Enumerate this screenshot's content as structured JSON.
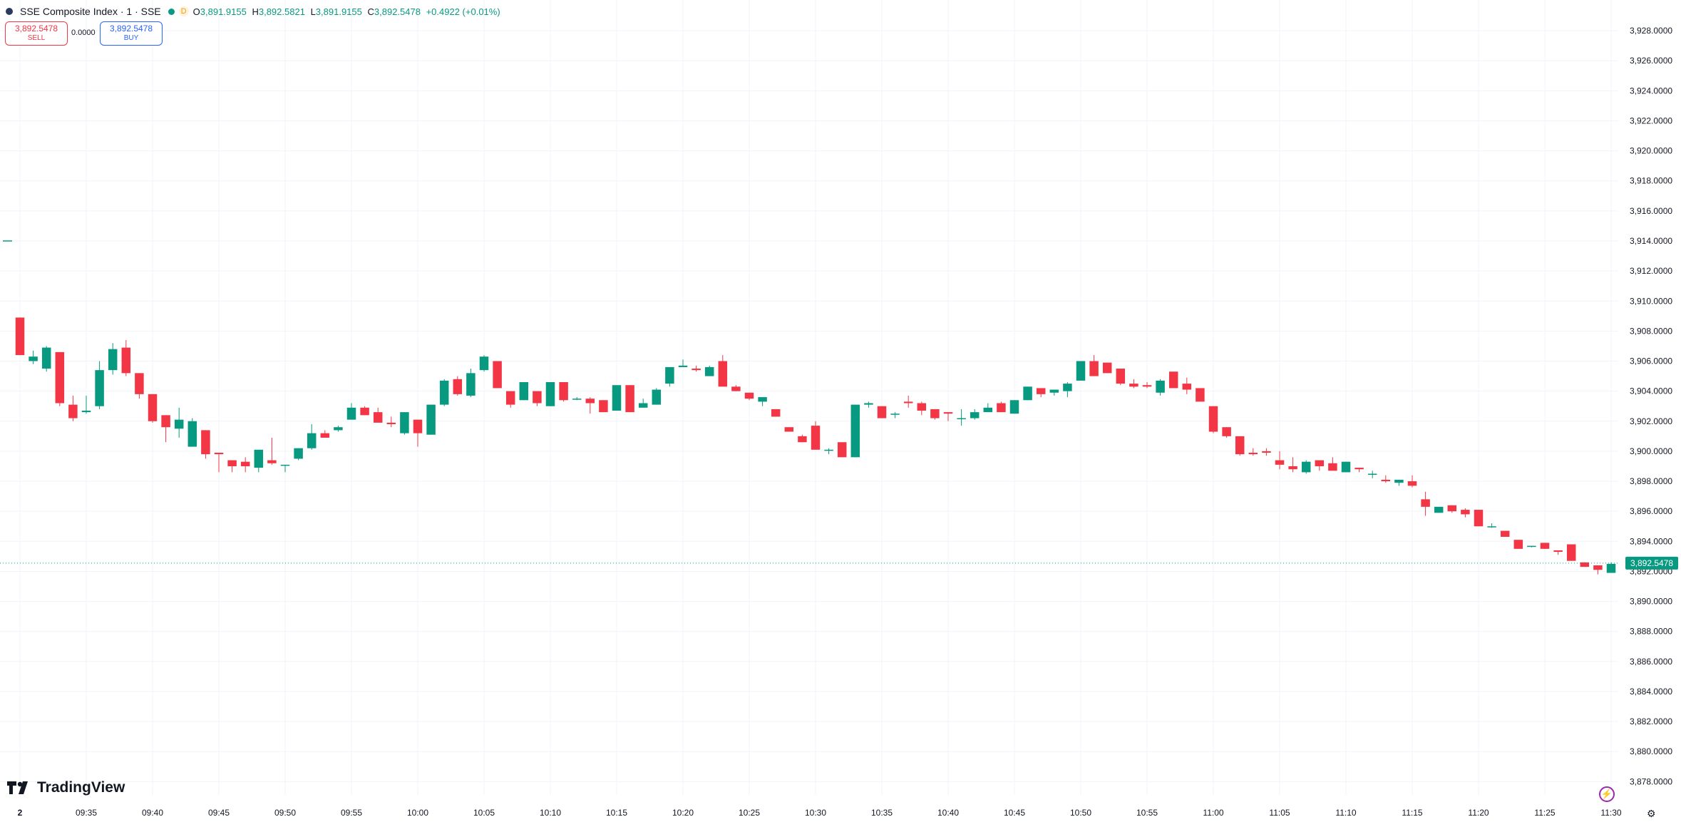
{
  "header": {
    "symbol": "SSE Composite Index · 1 · SSE",
    "badge": "D",
    "o_label": "O",
    "o_value": "3,891.9155",
    "h_label": "H",
    "h_value": "3,892.5821",
    "l_label": "L",
    "l_value": "3,891.9155",
    "c_label": "C",
    "c_value": "3,892.5478",
    "change": "+0.4922 (+0.01%)"
  },
  "trade": {
    "sell_price": "3,892.5478",
    "sell_label": "SELL",
    "spread": "0.0000",
    "buy_price": "3,892.5478",
    "buy_label": "BUY"
  },
  "logo_text": "TradingView",
  "colors": {
    "up": "#089981",
    "down": "#f23645",
    "grid": "#f0f3fa",
    "text": "#131722",
    "price_tag": "#089981"
  },
  "icons": {
    "logo": "tradingview-logo-icon",
    "bolt": "lightning-icon",
    "settings": "gear-icon"
  },
  "chart_data": {
    "type": "candlestick",
    "title": "SSE Composite Index · 1 · SSE",
    "y_axis": {
      "ylim": [
        3877.4,
        3929.0
      ],
      "ticks": [
        3928,
        3926,
        3924,
        3922,
        3920,
        3918,
        3916,
        3914,
        3912,
        3910,
        3908,
        3906,
        3904,
        3902,
        3900,
        3898,
        3896,
        3894,
        3892,
        3890,
        3888,
        3886,
        3884,
        3882,
        3880,
        3878
      ],
      "tick_labels": [
        "3,928.0000",
        "3,926.0000",
        "3,924.0000",
        "3,922.0000",
        "3,920.0000",
        "3,918.0000",
        "3,916.0000",
        "3,914.0000",
        "3,912.0000",
        "3,910.0000",
        "3,908.0000",
        "3,906.0000",
        "3,904.0000",
        "3,902.0000",
        "3,900.0000",
        "3,898.0000",
        "3,896.0000",
        "3,894.0000",
        "3,892.0000",
        "3,890.0000",
        "3,888.0000",
        "3,886.0000",
        "3,884.0000",
        "3,882.0000",
        "3,880.0000",
        "3,878.0000"
      ]
    },
    "x_axis": {
      "tick_labels": [
        {
          "label": "2",
          "bar": 0
        },
        {
          "label": "09:35",
          "bar": 5
        },
        {
          "label": "09:40",
          "bar": 10
        },
        {
          "label": "09:45",
          "bar": 15
        },
        {
          "label": "09:50",
          "bar": 20
        },
        {
          "label": "09:55",
          "bar": 25
        },
        {
          "label": "10:00",
          "bar": 30
        },
        {
          "label": "10:05",
          "bar": 35
        },
        {
          "label": "10:10",
          "bar": 40
        },
        {
          "label": "10:15",
          "bar": 45
        },
        {
          "label": "10:20",
          "bar": 50
        },
        {
          "label": "10:25",
          "bar": 55
        },
        {
          "label": "10:30",
          "bar": 60
        },
        {
          "label": "10:35",
          "bar": 65
        },
        {
          "label": "10:40",
          "bar": 70
        },
        {
          "label": "10:45",
          "bar": 75
        },
        {
          "label": "10:50",
          "bar": 80
        },
        {
          "label": "10:55",
          "bar": 85
        },
        {
          "label": "11:00",
          "bar": 90
        },
        {
          "label": "11:05",
          "bar": 95
        },
        {
          "label": "11:10",
          "bar": 100
        },
        {
          "label": "11:15",
          "bar": 105
        },
        {
          "label": "11:20",
          "bar": 110
        },
        {
          "label": "11:25",
          "bar": 115
        },
        {
          "label": "11:30",
          "bar": 120
        }
      ]
    },
    "prev_close_marker": 3914.0,
    "last_price": 3892.5478,
    "last_price_label": "3,892.5478",
    "candles": [
      [
        3908.9,
        3908.9,
        3906.4,
        3906.4
      ],
      [
        3906.0,
        3906.7,
        3905.8,
        3906.3
      ],
      [
        3905.5,
        3907.0,
        3905.3,
        3906.9
      ],
      [
        3906.6,
        3906.6,
        3903.0,
        3903.2
      ],
      [
        3903.1,
        3903.7,
        3902.0,
        3902.2
      ],
      [
        3902.6,
        3903.7,
        3902.5,
        3902.7
      ],
      [
        3903.0,
        3906.0,
        3902.8,
        3905.4
      ],
      [
        3905.4,
        3907.2,
        3905.1,
        3906.8
      ],
      [
        3906.9,
        3907.4,
        3905.0,
        3905.2
      ],
      [
        3905.2,
        3905.2,
        3903.5,
        3903.8
      ],
      [
        3903.8,
        3903.8,
        3901.9,
        3902.0
      ],
      [
        3902.4,
        3902.4,
        3900.6,
        3901.6
      ],
      [
        3901.5,
        3902.9,
        3900.9,
        3902.1
      ],
      [
        3900.3,
        3902.2,
        3900.3,
        3902.0
      ],
      [
        3901.4,
        3901.4,
        3899.5,
        3899.8
      ],
      [
        3899.9,
        3899.9,
        3898.6,
        3899.8
      ],
      [
        3899.4,
        3899.4,
        3898.6,
        3899.0
      ],
      [
        3899.3,
        3899.6,
        3898.6,
        3899.0
      ],
      [
        3898.9,
        3900.1,
        3898.6,
        3900.1
      ],
      [
        3899.4,
        3900.9,
        3899.1,
        3899.2
      ],
      [
        3899.1,
        3899.1,
        3898.6,
        3899.1
      ],
      [
        3899.5,
        3900.2,
        3899.4,
        3900.2
      ],
      [
        3900.2,
        3901.8,
        3900.1,
        3901.2
      ],
      [
        3901.2,
        3901.4,
        3900.9,
        3900.9
      ],
      [
        3901.4,
        3901.7,
        3901.3,
        3901.6
      ],
      [
        3902.1,
        3903.2,
        3902.1,
        3902.9
      ],
      [
        3902.9,
        3903.0,
        3902.4,
        3902.4
      ],
      [
        3902.6,
        3902.9,
        3901.9,
        3901.9
      ],
      [
        3901.9,
        3902.3,
        3901.6,
        3901.8
      ],
      [
        3901.2,
        3902.6,
        3901.1,
        3902.6
      ],
      [
        3902.1,
        3902.1,
        3900.3,
        3901.2
      ],
      [
        3901.1,
        3903.1,
        3901.1,
        3903.1
      ],
      [
        3903.1,
        3904.8,
        3903.0,
        3904.7
      ],
      [
        3904.8,
        3905.0,
        3903.7,
        3903.8
      ],
      [
        3903.7,
        3905.5,
        3903.6,
        3905.2
      ],
      [
        3905.4,
        3906.4,
        3905.3,
        3906.3
      ],
      [
        3906.0,
        3906.0,
        3904.2,
        3904.2
      ],
      [
        3904.0,
        3904.0,
        3902.9,
        3903.1
      ],
      [
        3903.4,
        3904.6,
        3903.4,
        3904.6
      ],
      [
        3904.0,
        3904.0,
        3903.0,
        3903.2
      ],
      [
        3903.0,
        3904.6,
        3903.0,
        3904.6
      ],
      [
        3904.6,
        3904.6,
        3903.3,
        3903.4
      ],
      [
        3903.5,
        3903.6,
        3903.4,
        3903.5
      ],
      [
        3903.5,
        3903.6,
        3902.5,
        3903.2
      ],
      [
        3903.4,
        3903.4,
        3902.6,
        3902.6
      ],
      [
        3902.7,
        3904.4,
        3902.7,
        3904.4
      ],
      [
        3904.4,
        3904.4,
        3902.6,
        3902.6
      ],
      [
        3902.9,
        3903.5,
        3902.9,
        3903.2
      ],
      [
        3903.1,
        3904.2,
        3903.1,
        3904.1
      ],
      [
        3904.5,
        3905.6,
        3904.3,
        3905.6
      ],
      [
        3905.6,
        3906.1,
        3905.6,
        3905.7
      ],
      [
        3905.5,
        3905.7,
        3905.3,
        3905.4
      ],
      [
        3905.0,
        3905.7,
        3905.0,
        3905.6
      ],
      [
        3906.0,
        3906.4,
        3904.6,
        3904.3
      ],
      [
        3904.3,
        3904.4,
        3904.0,
        3904.0
      ],
      [
        3903.9,
        3903.9,
        3903.4,
        3903.5
      ],
      [
        3903.3,
        3903.6,
        3903.0,
        3903.6
      ],
      [
        3902.8,
        3902.8,
        3902.3,
        3902.3
      ],
      [
        3901.6,
        3901.6,
        3901.3,
        3901.3
      ],
      [
        3901.0,
        3901.1,
        3900.6,
        3900.6
      ],
      [
        3901.7,
        3902.0,
        3900.1,
        3900.1
      ],
      [
        3900.1,
        3900.2,
        3899.8,
        3900.1
      ],
      [
        3900.6,
        3900.6,
        3899.6,
        3899.6
      ],
      [
        3899.6,
        3903.1,
        3899.6,
        3903.1
      ],
      [
        3903.1,
        3903.3,
        3902.9,
        3903.2
      ],
      [
        3903.0,
        3903.0,
        3902.2,
        3902.2
      ],
      [
        3902.5,
        3902.6,
        3902.2,
        3902.5
      ],
      [
        3903.3,
        3903.7,
        3902.9,
        3903.2
      ],
      [
        3903.2,
        3903.3,
        3902.4,
        3902.7
      ],
      [
        3902.8,
        3902.8,
        3902.1,
        3902.2
      ],
      [
        3902.6,
        3902.6,
        3902.0,
        3902.5
      ],
      [
        3902.2,
        3902.8,
        3901.7,
        3902.2
      ],
      [
        3902.2,
        3902.8,
        3902.1,
        3902.6
      ],
      [
        3902.6,
        3903.2,
        3902.6,
        3902.9
      ],
      [
        3903.2,
        3903.3,
        3902.6,
        3902.6
      ],
      [
        3902.5,
        3903.4,
        3902.5,
        3903.4
      ],
      [
        3903.4,
        3904.3,
        3903.4,
        3904.3
      ],
      [
        3904.2,
        3904.2,
        3903.6,
        3903.8
      ],
      [
        3903.9,
        3904.1,
        3903.7,
        3904.1
      ],
      [
        3904.0,
        3904.6,
        3903.6,
        3904.5
      ],
      [
        3904.7,
        3906.0,
        3904.7,
        3906.0
      ],
      [
        3906.0,
        3906.4,
        3905.0,
        3905.0
      ],
      [
        3905.9,
        3905.9,
        3905.2,
        3905.2
      ],
      [
        3905.5,
        3905.5,
        3904.4,
        3904.5
      ],
      [
        3904.5,
        3904.8,
        3904.2,
        3904.3
      ],
      [
        3904.4,
        3904.6,
        3904.2,
        3904.3
      ],
      [
        3903.9,
        3904.8,
        3903.7,
        3904.7
      ],
      [
        3905.3,
        3905.3,
        3904.2,
        3904.2
      ],
      [
        3904.5,
        3904.9,
        3903.8,
        3904.1
      ],
      [
        3904.2,
        3904.2,
        3903.4,
        3903.3
      ],
      [
        3903.0,
        3903.0,
        3901.2,
        3901.3
      ],
      [
        3901.6,
        3901.6,
        3900.9,
        3901.0
      ],
      [
        3901.0,
        3901.0,
        3899.7,
        3899.8
      ],
      [
        3899.9,
        3900.2,
        3899.7,
        3899.8
      ],
      [
        3900.0,
        3900.2,
        3899.7,
        3899.9
      ],
      [
        3899.4,
        3900.0,
        3898.8,
        3899.1
      ],
      [
        3899.0,
        3899.6,
        3898.6,
        3898.8
      ],
      [
        3898.6,
        3899.4,
        3898.5,
        3899.3
      ],
      [
        3899.4,
        3899.4,
        3898.7,
        3899.0
      ],
      [
        3899.2,
        3899.6,
        3898.9,
        3898.7
      ],
      [
        3898.6,
        3899.3,
        3898.6,
        3899.3
      ],
      [
        3898.9,
        3898.9,
        3898.6,
        3898.8
      ],
      [
        3898.5,
        3898.7,
        3898.2,
        3898.5
      ],
      [
        3898.1,
        3898.4,
        3897.9,
        3898.0
      ],
      [
        3897.9,
        3898.1,
        3897.7,
        3898.1
      ],
      [
        3898.0,
        3898.4,
        3897.6,
        3897.7
      ],
      [
        3896.8,
        3897.3,
        3895.7,
        3896.3
      ],
      [
        3895.9,
        3896.3,
        3895.9,
        3896.3
      ],
      [
        3896.4,
        3896.4,
        3895.9,
        3896.0
      ],
      [
        3896.1,
        3896.2,
        3895.6,
        3895.8
      ],
      [
        3896.1,
        3896.1,
        3895.0,
        3895.0
      ],
      [
        3895.0,
        3895.2,
        3894.9,
        3895.0
      ],
      [
        3894.7,
        3894.7,
        3894.3,
        3894.3
      ],
      [
        3894.1,
        3894.1,
        3893.5,
        3893.5
      ],
      [
        3893.7,
        3893.7,
        3893.6,
        3893.7
      ],
      [
        3893.9,
        3893.9,
        3893.5,
        3893.5
      ],
      [
        3893.4,
        3893.4,
        3893.1,
        3893.3
      ],
      [
        3893.8,
        3893.8,
        3892.7,
        3892.7
      ],
      [
        3892.6,
        3892.6,
        3892.3,
        3892.3
      ],
      [
        3892.4,
        3892.4,
        3891.8,
        3892.1
      ],
      [
        3891.9,
        3892.6,
        3891.9,
        3892.5
      ]
    ]
  }
}
